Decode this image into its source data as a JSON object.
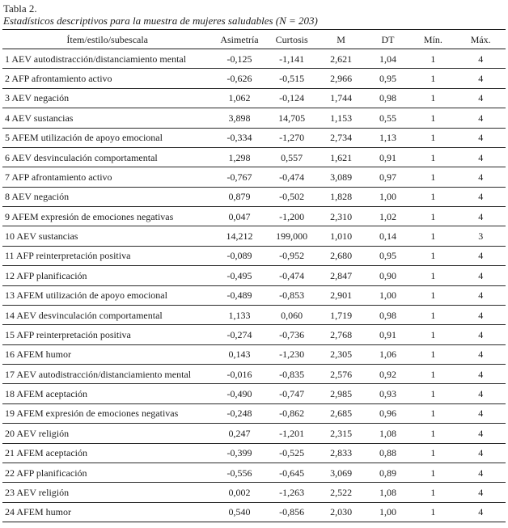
{
  "title": "Tabla 2.",
  "subtitle": "Estadísticos descriptivos para la muestra de mujeres saludables (N = 203)",
  "table": {
    "columns": [
      "Ítem/estilo/subescala",
      "Asimetría",
      "Curtosis",
      "M",
      "DT",
      "Mín.",
      "Máx."
    ],
    "rows": [
      [
        "1 AEV autodistracción/distanciamiento mental",
        "-0,125",
        "-1,141",
        "2,621",
        "1,04",
        "1",
        "4"
      ],
      [
        "2 AFP afrontamiento activo",
        "-0,626",
        "-0,515",
        "2,966",
        "0,95",
        "1",
        "4"
      ],
      [
        "3 AEV negación",
        "1,062",
        "-0,124",
        "1,744",
        "0,98",
        "1",
        "4"
      ],
      [
        "4 AEV sustancias",
        "3,898",
        "14,705",
        "1,153",
        "0,55",
        "1",
        "4"
      ],
      [
        "5 AFEM utilización de apoyo emocional",
        "-0,334",
        "-1,270",
        "2,734",
        "1,13",
        "1",
        "4"
      ],
      [
        "6 AEV desvinculación comportamental",
        "1,298",
        "0,557",
        "1,621",
        "0,91",
        "1",
        "4"
      ],
      [
        "7 AFP afrontamiento activo",
        "-0,767",
        "-0,474",
        "3,089",
        "0,97",
        "1",
        "4"
      ],
      [
        "8 AEV negación",
        "0,879",
        "-0,502",
        "1,828",
        "1,00",
        "1",
        "4"
      ],
      [
        "9 AFEM expresión de emociones negativas",
        "0,047",
        "-1,200",
        "2,310",
        "1,02",
        "1",
        "4"
      ],
      [
        "10 AEV sustancias",
        "14,212",
        "199,000",
        "1,010",
        "0,14",
        "1",
        "3"
      ],
      [
        "11 AFP reinterpretación positiva",
        "-0,089",
        "-0,952",
        "2,680",
        "0,95",
        "1",
        "4"
      ],
      [
        "12 AFP planificación",
        "-0,495",
        "-0,474",
        "2,847",
        "0,90",
        "1",
        "4"
      ],
      [
        "13 AFEM utilización de apoyo emocional",
        "-0,489",
        "-0,853",
        "2,901",
        "1,00",
        "1",
        "4"
      ],
      [
        "14 AEV desvinculación comportamental",
        "1,133",
        "0,060",
        "1,719",
        "0,98",
        "1",
        "4"
      ],
      [
        "15 AFP reinterpretación positiva",
        "-0,274",
        "-0,736",
        "2,768",
        "0,91",
        "1",
        "4"
      ],
      [
        "16 AFEM humor",
        "0,143",
        "-1,230",
        "2,305",
        "1,06",
        "1",
        "4"
      ],
      [
        "17 AEV autodistracción/distanciamiento mental",
        "-0,016",
        "-0,835",
        "2,576",
        "0,92",
        "1",
        "4"
      ],
      [
        "18 AFEM aceptación",
        "-0,490",
        "-0,747",
        "2,985",
        "0,93",
        "1",
        "4"
      ],
      [
        "19 AFEM expresión de emociones negativas",
        "-0,248",
        "-0,862",
        "2,685",
        "0,96",
        "1",
        "4"
      ],
      [
        "20 AEV religión",
        "0,247",
        "-1,201",
        "2,315",
        "1,08",
        "1",
        "4"
      ],
      [
        "21 AFEM aceptación",
        "-0,399",
        "-0,525",
        "2,833",
        "0,88",
        "1",
        "4"
      ],
      [
        "22 AFP planificación",
        "-0,556",
        "-0,645",
        "3,069",
        "0,89",
        "1",
        "4"
      ],
      [
        "23 AEV religión",
        "0,002",
        "-1,263",
        "2,522",
        "1,08",
        "1",
        "4"
      ],
      [
        "24 AFEM humor",
        "0,540",
        "-0,856",
        "2,030",
        "1,00",
        "1",
        "4"
      ]
    ]
  }
}
